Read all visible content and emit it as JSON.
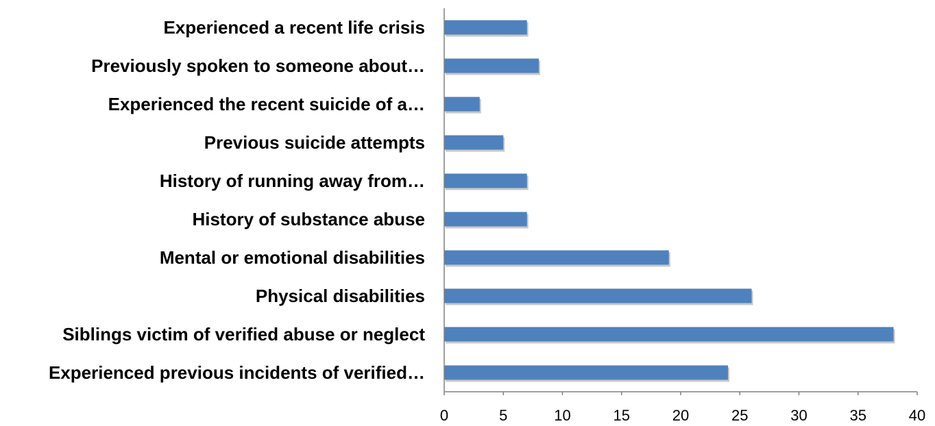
{
  "chart_data": {
    "type": "bar",
    "orientation": "horizontal",
    "categories": [
      "Experienced a recent life crisis",
      "Previously spoken to someone about…",
      "Experienced the recent suicide of a…",
      "Previous suicide attempts",
      "History of running away from…",
      "History of substance abuse",
      "Mental or emotional disabilities",
      "Physical disabilities",
      "Siblings victim of verified abuse or neglect",
      "Experienced previous incidents of verified…"
    ],
    "values": [
      7,
      8,
      3,
      5,
      7,
      7,
      19,
      26,
      38,
      24
    ],
    "xlim": [
      0,
      40
    ],
    "xticks": [
      "0",
      "5",
      "10",
      "15",
      "20",
      "25",
      "30",
      "35",
      "40"
    ],
    "title": "",
    "xlabel": "",
    "ylabel": "",
    "grid": false,
    "bar_color": "#4f81bd"
  }
}
